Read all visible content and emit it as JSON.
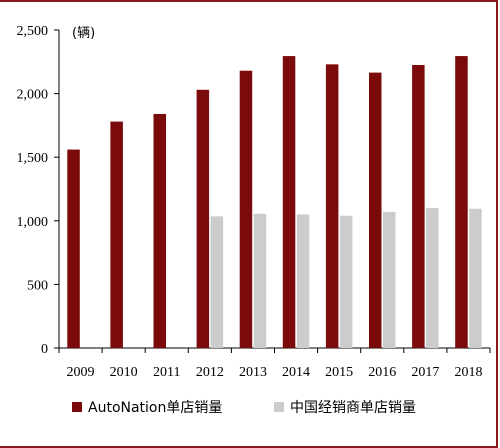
{
  "chart_data": {
    "type": "bar",
    "title": "",
    "xlabel": "",
    "ylabel": "",
    "unit_label": "(辆)",
    "categories": [
      "2009",
      "2010",
      "2011",
      "2012",
      "2013",
      "2014",
      "2015",
      "2016",
      "2017",
      "2018"
    ],
    "ylim": [
      0,
      2500
    ],
    "yticks": [
      0,
      500,
      1000,
      1500,
      2000,
      2500
    ],
    "ytick_labels": [
      "0",
      "500",
      "1,000",
      "1,500",
      "2,000",
      "2,500"
    ],
    "grid": false,
    "legend_position": "bottom",
    "series": [
      {
        "name": "AutoNation单店销量",
        "color": "#7b0a0a",
        "values": [
          1560,
          1780,
          1840,
          2030,
          2180,
          2295,
          2230,
          2165,
          2225,
          2295
        ]
      },
      {
        "name": "中国经销商单店销量",
        "color": "#cccccc",
        "values": [
          null,
          null,
          null,
          1035,
          1055,
          1050,
          1040,
          1070,
          1100,
          1095
        ]
      }
    ]
  }
}
